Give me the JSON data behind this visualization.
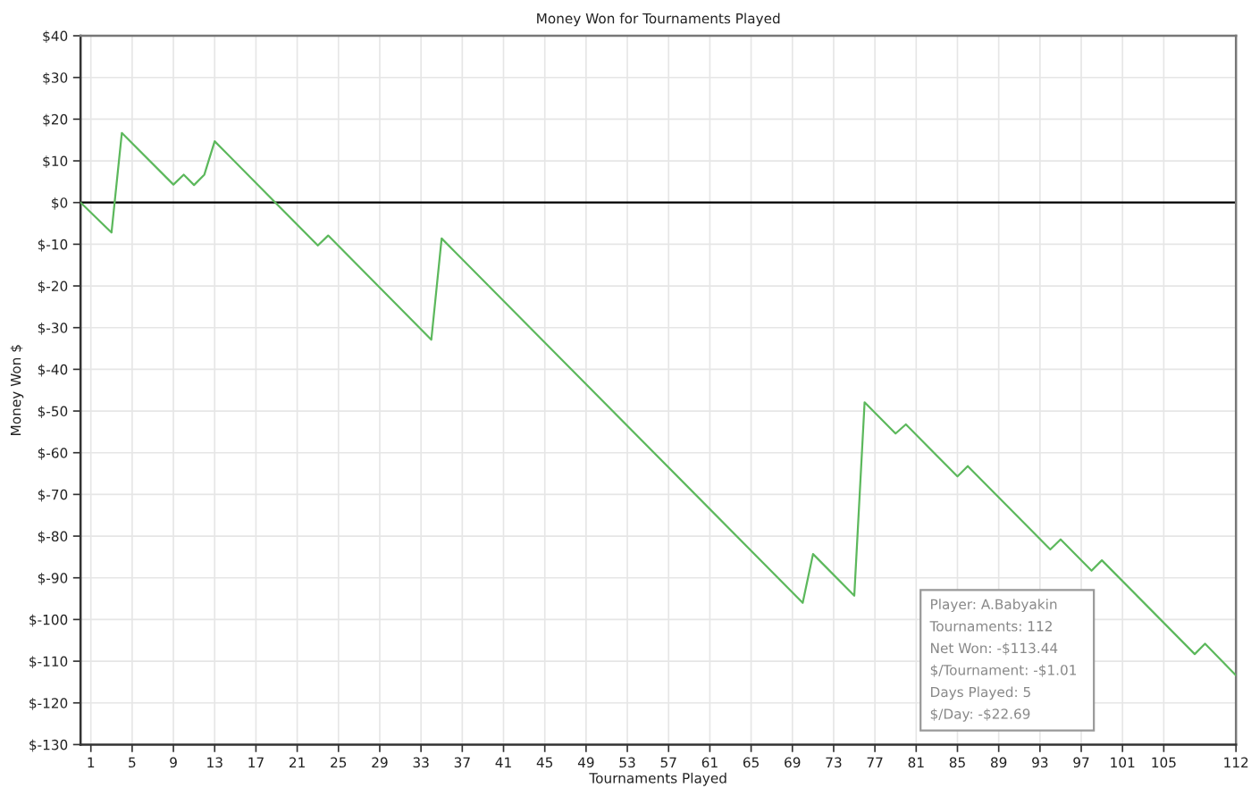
{
  "chart_data": {
    "type": "line",
    "title": "Money Won for Tournaments Played",
    "xlabel": "Tournaments Played",
    "ylabel": "Money Won $",
    "x": [
      0,
      3,
      4,
      9,
      10,
      11,
      12,
      13,
      23,
      24,
      34,
      35,
      70,
      71,
      75,
      76,
      79,
      80,
      85,
      86,
      94,
      95,
      98,
      99,
      108,
      109,
      112
    ],
    "series": [
      {
        "color": "#5cb85c",
        "values": [
          0,
          -7.2,
          16.7,
          4.3,
          6.7,
          4.2,
          6.7,
          14.7,
          -10.3,
          -7.9,
          -32.9,
          -8.6,
          -96.0,
          -84.3,
          -94.3,
          -47.9,
          -55.4,
          -53.2,
          -65.7,
          -63.2,
          -83.2,
          -80.8,
          -88.3,
          -85.8,
          -108.3,
          -105.8,
          -113.4
        ]
      }
    ],
    "xlim": [
      0,
      112
    ],
    "xticks": [
      1,
      5,
      9,
      13,
      17,
      21,
      25,
      29,
      33,
      37,
      41,
      45,
      49,
      53,
      57,
      61,
      65,
      69,
      73,
      77,
      81,
      85,
      89,
      93,
      97,
      101,
      105,
      112
    ],
    "ylim": [
      -130,
      40
    ],
    "yticks": [
      {
        "value": 40,
        "label": "$40"
      },
      {
        "value": 30,
        "label": "$30"
      },
      {
        "value": 20,
        "label": "$20"
      },
      {
        "value": 10,
        "label": "$10"
      },
      {
        "value": 0,
        "label": "$0"
      },
      {
        "value": -10,
        "label": "$-10"
      },
      {
        "value": -20,
        "label": "$-20"
      },
      {
        "value": -30,
        "label": "$-30"
      },
      {
        "value": -40,
        "label": "$-40"
      },
      {
        "value": -50,
        "label": "$-50"
      },
      {
        "value": -60,
        "label": "$-60"
      },
      {
        "value": -70,
        "label": "$-70"
      },
      {
        "value": -80,
        "label": "$-80"
      },
      {
        "value": -90,
        "label": "$-90"
      },
      {
        "value": -100,
        "label": "$-100"
      },
      {
        "value": -110,
        "label": "$-110"
      },
      {
        "value": -120,
        "label": "$-120"
      },
      {
        "value": -130,
        "label": "$-130"
      }
    ],
    "ref_lines": [
      {
        "axis": "y",
        "value": 0,
        "color": "#000000"
      }
    ],
    "annotations": [
      "Player: A.Babyakin",
      "Tournaments: 112",
      "Net Won: -$113.44",
      "$/Tournament: -$1.01",
      "Days Played: 5",
      "$/Day: -$22.69"
    ],
    "grid": true,
    "marker": "none",
    "line_style": "solid"
  }
}
